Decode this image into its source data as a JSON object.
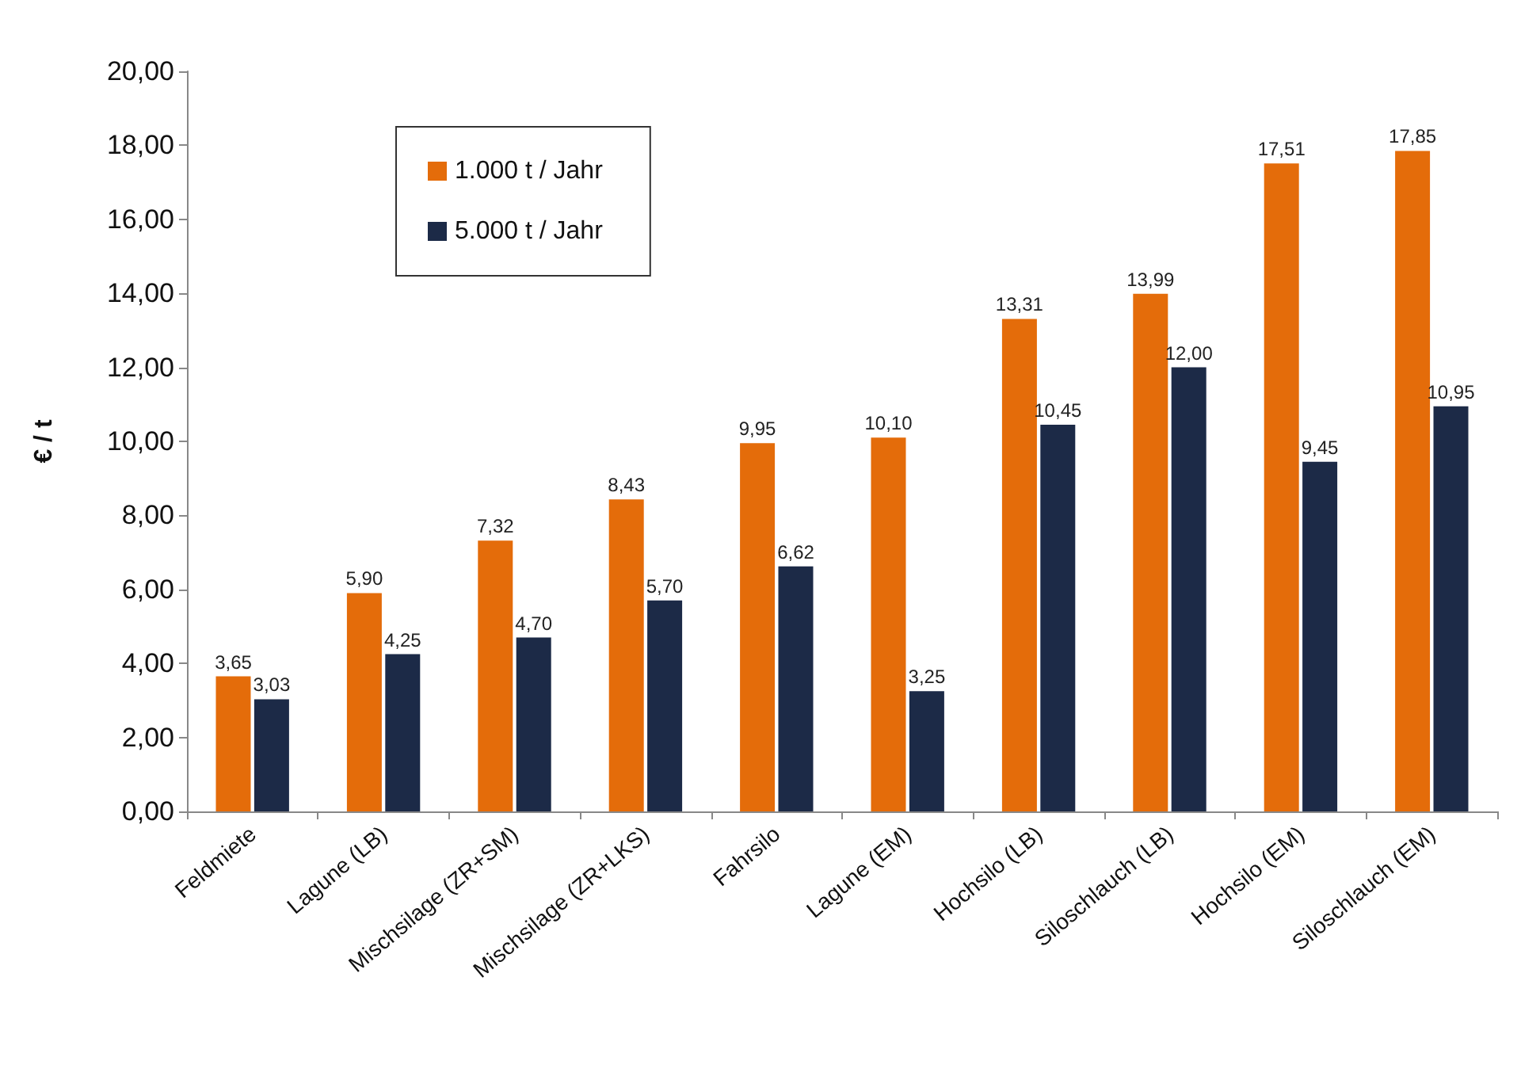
{
  "chart_data": {
    "type": "bar",
    "ylabel": "€ / t",
    "categories": [
      "Feldmiete",
      "Lagune (LB)",
      "Mischsilage (ZR+SM)",
      "Mischsilage (ZR+LKS)",
      "Fahrsilo",
      "Lagune (EM)",
      "Hochsilo (LB)",
      "Siloschlauch (LB)",
      "Hochsilo (EM)",
      "Siloschlauch (EM)"
    ],
    "series": [
      {
        "name": "1.000 t / Jahr",
        "color": "#e46c0a",
        "values": [
          3.65,
          5.9,
          7.32,
          8.43,
          9.95,
          10.1,
          13.31,
          13.99,
          17.51,
          17.85
        ],
        "value_labels": [
          "3,65",
          "5,90",
          "7,32",
          "8,43",
          "9,95",
          "10,10",
          "13,31",
          "13,99",
          "17,51",
          "17,85"
        ]
      },
      {
        "name": "5.000 t / Jahr",
        "color": "#1c2a47",
        "values": [
          3.03,
          4.25,
          4.7,
          5.7,
          6.62,
          3.25,
          10.45,
          12.0,
          9.45,
          10.95
        ],
        "value_labels": [
          "3,03",
          "4,25",
          "4,70",
          "5,70",
          "6,62",
          "3,25",
          "10,45",
          "12,00",
          "9,45",
          "10,95"
        ]
      }
    ],
    "ylim": [
      0,
      20
    ],
    "yticks": [
      {
        "value": 0,
        "label": "0,00"
      },
      {
        "value": 2,
        "label": "2,00"
      },
      {
        "value": 4,
        "label": "4,00"
      },
      {
        "value": 6,
        "label": "6,00"
      },
      {
        "value": 8,
        "label": "8,00"
      },
      {
        "value": 10,
        "label": "10,00"
      },
      {
        "value": 12,
        "label": "12,00"
      },
      {
        "value": 14,
        "label": "14,00"
      },
      {
        "value": 16,
        "label": "16,00"
      },
      {
        "value": 18,
        "label": "18,00"
      },
      {
        "value": 20,
        "label": "20,00"
      }
    ],
    "grid": false,
    "legend": "top left"
  }
}
